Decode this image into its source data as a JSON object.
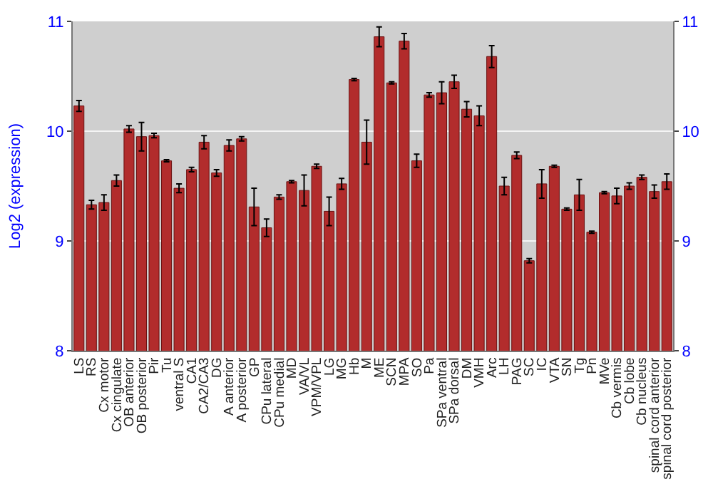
{
  "chart_data": {
    "type": "bar",
    "ylabel": "Log2 (expression)",
    "categories": [
      "LS",
      "RS",
      "Cx motor",
      "Cx cingulate",
      "OB anterior",
      "OB posterior",
      "Pir",
      "Tu",
      "ventral S",
      "CA1",
      "CA2/CA3",
      "DG",
      "A anterior",
      "A posterior",
      "GP",
      "CPu lateral",
      "CPu medial",
      "MD",
      "VA/VL",
      "VPM/VPL",
      "LG",
      "MG",
      "Hb",
      "M",
      "ME",
      "SCN",
      "MPA",
      "SO",
      "Pa",
      "SPa ventral",
      "SPa dorsal",
      "DM",
      "VMH",
      "Arc",
      "LH",
      "PAG",
      "SC",
      "IC",
      "VTA",
      "SN",
      "Tg",
      "Pn",
      "MVe",
      "Cb vermis",
      "Cb lobe",
      "Cb nucleus",
      "spinal cord anterior",
      "spinal cord posterior"
    ],
    "values": [
      10.23,
      9.33,
      9.35,
      9.55,
      10.02,
      9.95,
      9.96,
      9.73,
      9.48,
      9.65,
      9.9,
      9.62,
      9.87,
      9.93,
      9.31,
      9.12,
      9.4,
      9.54,
      9.46,
      9.68,
      9.27,
      9.52,
      10.47,
      9.9,
      10.86,
      10.44,
      10.82,
      9.73,
      10.33,
      10.35,
      10.45,
      10.2,
      10.14,
      10.68,
      9.5,
      9.78,
      8.82,
      9.52,
      9.68,
      9.29,
      9.42,
      9.08,
      9.44,
      9.41,
      9.5,
      9.58,
      9.45,
      9.54
    ],
    "errors": [
      0.05,
      0.04,
      0.07,
      0.05,
      0.03,
      0.13,
      0.02,
      0.01,
      0.04,
      0.02,
      0.06,
      0.03,
      0.05,
      0.02,
      0.17,
      0.08,
      0.02,
      0.01,
      0.14,
      0.02,
      0.13,
      0.05,
      0.01,
      0.2,
      0.09,
      0.01,
      0.07,
      0.06,
      0.02,
      0.1,
      0.06,
      0.07,
      0.09,
      0.1,
      0.08,
      0.03,
      0.02,
      0.13,
      0.01,
      0.01,
      0.14,
      0.01,
      0.01,
      0.07,
      0.03,
      0.02,
      0.06,
      0.07
    ],
    "color": "#b22c2c",
    "ylim": [
      8,
      11
    ],
    "yticks": [
      8,
      9,
      10,
      11
    ],
    "y2lim": [
      8,
      11
    ],
    "y2ticks": [
      8,
      9,
      10,
      11
    ],
    "grid": "y",
    "legend": false
  }
}
